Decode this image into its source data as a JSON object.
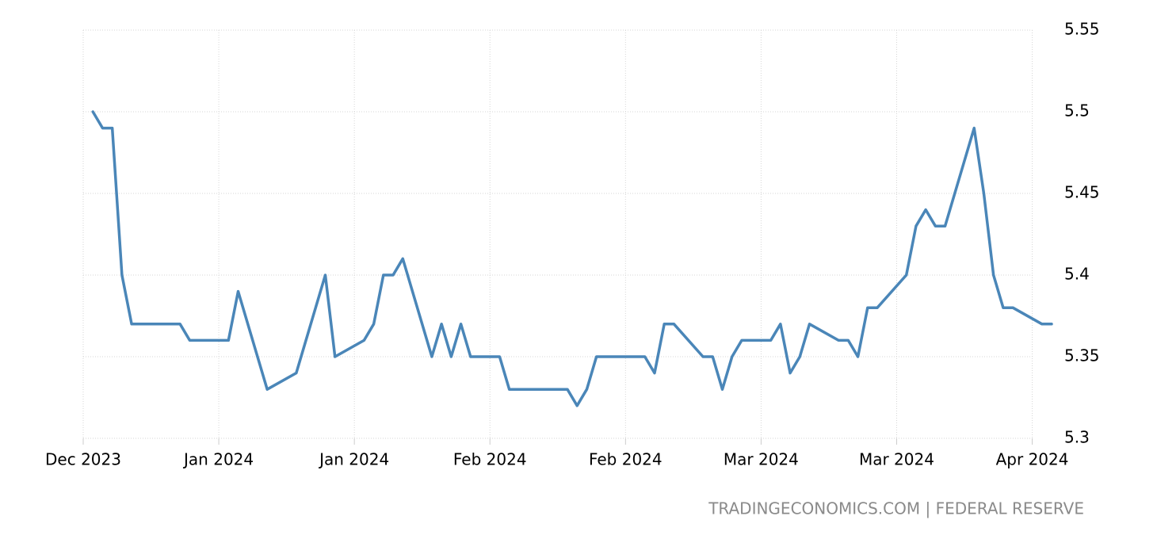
{
  "chart_data": {
    "type": "line",
    "source": "TRADINGECONOMICS.COM | FEDERAL RESERVE",
    "color": "#4a86b8",
    "grid": true,
    "x": [
      1,
      2,
      3,
      4,
      5,
      10,
      11,
      15,
      16,
      19,
      22,
      25,
      26,
      29,
      30,
      31,
      32,
      33,
      36,
      37,
      38,
      39,
      40,
      43,
      44,
      50,
      51,
      52,
      53,
      58,
      59,
      60,
      61,
      64,
      65,
      66,
      67,
      68,
      71,
      72,
      73,
      74,
      75,
      78,
      79,
      80,
      81,
      82,
      85,
      86,
      87,
      88,
      89,
      92,
      93,
      94,
      95,
      96,
      99,
      100
    ],
    "values": [
      5.5,
      5.49,
      5.49,
      5.4,
      5.37,
      5.37,
      5.36,
      5.36,
      5.39,
      5.33,
      5.34,
      5.4,
      5.35,
      5.36,
      5.37,
      5.4,
      5.4,
      5.41,
      5.35,
      5.37,
      5.35,
      5.37,
      5.35,
      5.35,
      5.33,
      5.33,
      5.32,
      5.33,
      5.35,
      5.35,
      5.34,
      5.37,
      5.37,
      5.35,
      5.35,
      5.33,
      5.35,
      5.36,
      5.36,
      5.37,
      5.34,
      5.35,
      5.37,
      5.36,
      5.36,
      5.35,
      5.38,
      5.38,
      5.4,
      5.43,
      5.44,
      5.43,
      5.43,
      5.49,
      5.45,
      5.4,
      5.38,
      5.38,
      5.37,
      5.37
    ],
    "xlim": [
      0,
      100
    ],
    "xticks": [
      {
        "value": 0,
        "label": "Dec 2023"
      },
      {
        "value": 14,
        "label": "Jan 2024"
      },
      {
        "value": 28,
        "label": "Jan 2024"
      },
      {
        "value": 42,
        "label": "Feb 2024"
      },
      {
        "value": 56,
        "label": "Feb 2024"
      },
      {
        "value": 70,
        "label": "Mar 2024"
      },
      {
        "value": 84,
        "label": "Mar 2024"
      },
      {
        "value": 98,
        "label": "Apr 2024"
      }
    ],
    "ylim": [
      5.3,
      5.55
    ],
    "yticks": [
      5.3,
      5.35,
      5.4,
      5.45,
      5.5,
      5.55
    ]
  }
}
